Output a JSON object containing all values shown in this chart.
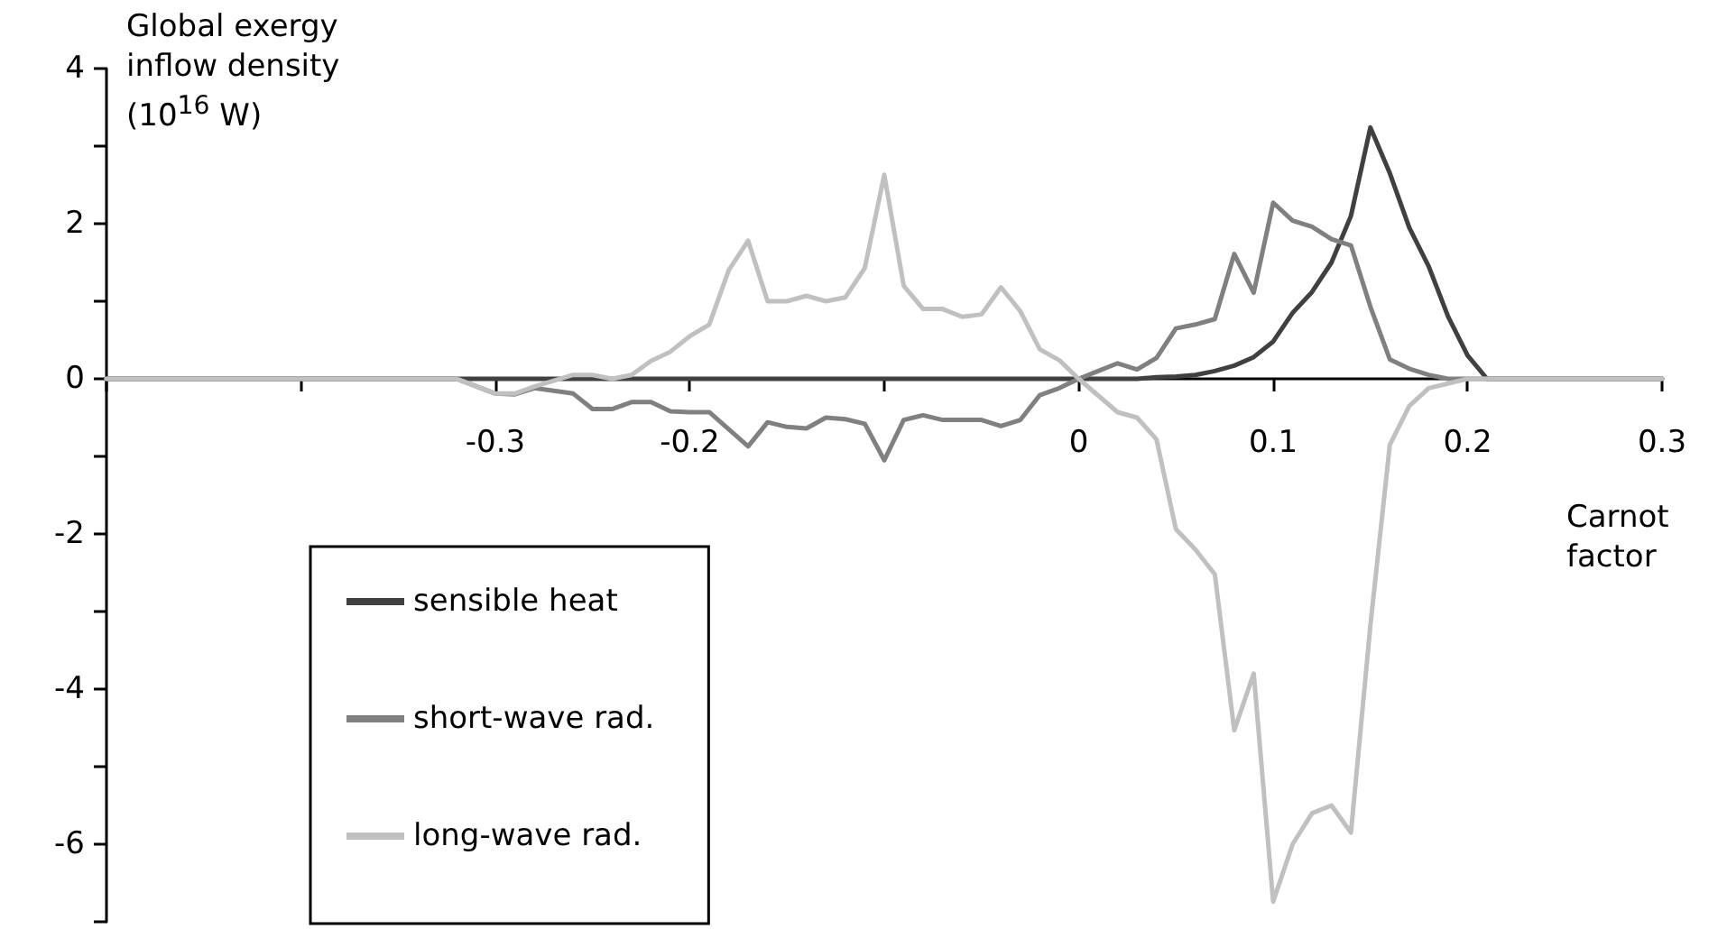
{
  "chart_data": {
    "type": "line",
    "xlabel": "Carnot factor",
    "ylabel": "Global exergy inflow density (10$^{16}$ W)",
    "xlim": [
      -0.5,
      0.3
    ],
    "ylim": [
      -7,
      4
    ],
    "xticks": [
      {
        "value": -0.5,
        "label": null
      },
      {
        "value": -0.4,
        "label": null
      },
      -0.3,
      -0.2,
      {
        "value": -0.1,
        "label": null
      },
      0,
      0.1,
      0.2,
      0.3
    ],
    "yticks": [
      {
        "value": -7,
        "label": null
      },
      -6,
      {
        "value": -5,
        "label": null
      },
      -4,
      {
        "value": -3,
        "label": null
      },
      -2,
      {
        "value": -1,
        "label": null
      },
      0,
      {
        "value": 1,
        "label": null
      },
      2,
      {
        "value": 3,
        "label": null
      },
      4
    ],
    "grid": false,
    "legend": "bottom left",
    "marker": "none",
    "line_style": "solid",
    "series": [
      {
        "name": "sensible heat",
        "color": "#404040",
        "x": [
          -0.5,
          0.03,
          0.04,
          0.05,
          0.06,
          0.07,
          0.08,
          0.09,
          0.1,
          0.11,
          0.12,
          0.13,
          0.14,
          0.15,
          0.16,
          0.17,
          0.18,
          0.19,
          0.2,
          0.21,
          0.3
        ],
        "values": [
          0,
          0,
          0.02,
          0.03,
          0.05,
          0.1,
          0.17,
          0.28,
          0.48,
          0.85,
          1.12,
          1.5,
          2.1,
          3.24,
          2.65,
          1.95,
          1.45,
          0.8,
          0.3,
          0,
          0
        ]
      },
      {
        "name": "short-wave rad.",
        "color": "#808080",
        "x": [
          -0.5,
          -0.32,
          -0.3,
          -0.29,
          -0.28,
          -0.26,
          -0.25,
          -0.24,
          -0.23,
          -0.22,
          -0.21,
          -0.2,
          -0.19,
          -0.17,
          -0.16,
          -0.15,
          -0.14,
          -0.13,
          -0.12,
          -0.11,
          -0.1,
          -0.09,
          -0.08,
          -0.07,
          -0.06,
          -0.05,
          -0.04,
          -0.03,
          -0.02,
          -0.01,
          0,
          0.01,
          0.02,
          0.03,
          0.04,
          0.05,
          0.06,
          0.07,
          0.08,
          0.09,
          0.1,
          0.11,
          0.12,
          0.13,
          0.14,
          0.15,
          0.16,
          0.17,
          0.18,
          0.19,
          0.3
        ],
        "values": [
          0,
          0,
          -0.19,
          -0.2,
          -0.12,
          -0.19,
          -0.39,
          -0.39,
          -0.3,
          -0.3,
          -0.42,
          -0.43,
          -0.43,
          -0.87,
          -0.56,
          -0.62,
          -0.64,
          -0.5,
          -0.52,
          -0.58,
          -1.05,
          -0.53,
          -0.47,
          -0.53,
          -0.53,
          -0.53,
          -0.61,
          -0.53,
          -0.21,
          -0.12,
          0,
          0.1,
          0.2,
          0.12,
          0.27,
          0.65,
          0.7,
          0.77,
          1.61,
          1.11,
          2.27,
          2.04,
          1.96,
          1.8,
          1.72,
          0.93,
          0.25,
          0.13,
          0.05,
          0,
          0
        ]
      },
      {
        "name": "long-wave rad.",
        "color": "#c0c0c0",
        "x": [
          -0.5,
          -0.32,
          -0.3,
          -0.29,
          -0.28,
          -0.26,
          -0.25,
          -0.24,
          -0.23,
          -0.22,
          -0.21,
          -0.2,
          -0.19,
          -0.18,
          -0.17,
          -0.16,
          -0.15,
          -0.14,
          -0.13,
          -0.12,
          -0.11,
          -0.1,
          -0.09,
          -0.08,
          -0.07,
          -0.06,
          -0.05,
          -0.04,
          -0.03,
          -0.02,
          -0.01,
          0,
          0.02,
          0.03,
          0.04,
          0.05,
          0.06,
          0.07,
          0.08,
          0.09,
          0.1,
          0.11,
          0.12,
          0.13,
          0.14,
          0.15,
          0.16,
          0.17,
          0.18,
          0.2,
          0.3
        ],
        "values": [
          0,
          0,
          -0.19,
          -0.19,
          -0.1,
          0.05,
          0.05,
          0,
          0.05,
          0.23,
          0.35,
          0.55,
          0.7,
          1.4,
          1.78,
          1.0,
          1.0,
          1.07,
          1.0,
          1.05,
          1.43,
          2.63,
          1.2,
          0.9,
          0.9,
          0.8,
          0.83,
          1.18,
          0.87,
          0.38,
          0.24,
          0,
          -0.43,
          -0.5,
          -0.78,
          -1.94,
          -2.2,
          -2.52,
          -4.53,
          -3.8,
          -6.74,
          -6.0,
          -5.6,
          -5.5,
          -5.85,
          -3.18,
          -0.85,
          -0.35,
          -0.12,
          0,
          0
        ]
      }
    ]
  }
}
